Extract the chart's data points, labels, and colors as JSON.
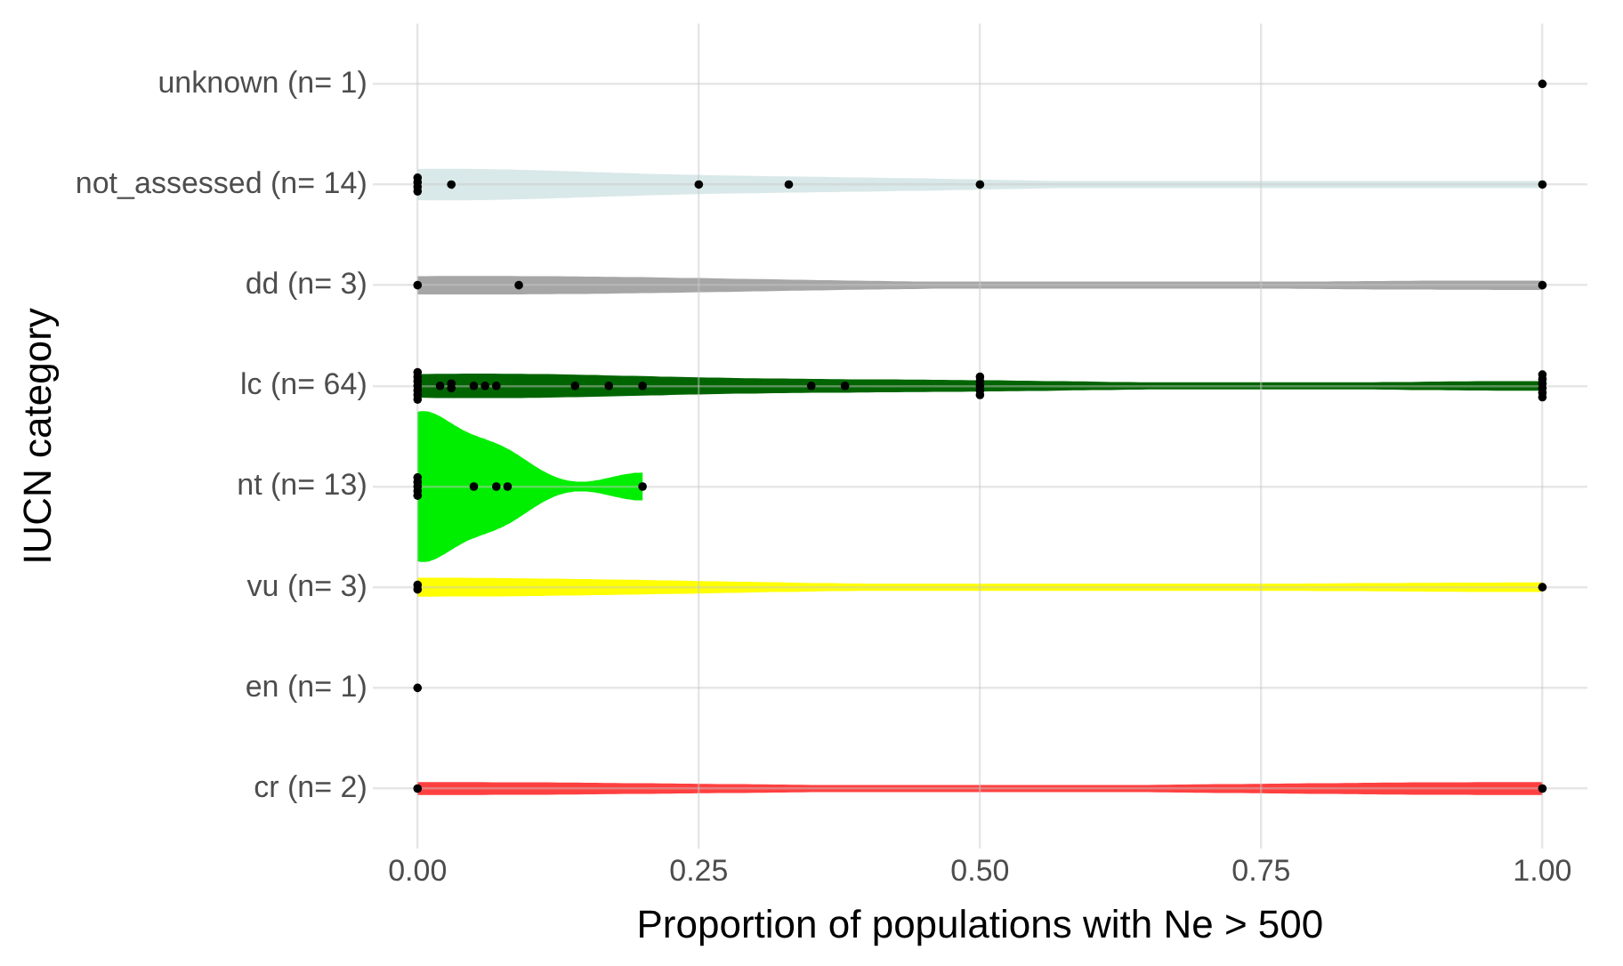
{
  "chart_data": {
    "type": "scatter",
    "orientation": "horizontal",
    "xlabel": "Proportion of populations with Ne > 500",
    "ylabel": "IUCN category",
    "categories": [
      "unknown (n= 1)",
      "not_assessed (n= 14)",
      "dd (n= 3)",
      "lc (n= 64)",
      "nt (n= 13)",
      "vu (n= 3)",
      "en (n= 1)",
      "cr (n= 2)"
    ],
    "colors": [
      null,
      "#d9e8e8",
      "#a6a6a6",
      "#006400",
      "#00ee00",
      "#ffff00",
      null,
      "#ff4040"
    ],
    "xlim": [
      -0.04,
      1.04
    ],
    "xticks": [
      {
        "value": 0,
        "label": "0.00"
      },
      {
        "value": 0.25,
        "label": "0.25"
      },
      {
        "value": 0.5,
        "label": "0.50"
      },
      {
        "value": 0.75,
        "label": "0.75"
      },
      {
        "value": 1,
        "label": "1.00"
      }
    ],
    "grid": true,
    "legend": false,
    "marker": "circle",
    "series": [
      {
        "color": "#000000",
        "x": [
          "unknown (n= 1)",
          "not_assessed (n= 14)",
          "not_assessed (n= 14)",
          "not_assessed (n= 14)",
          "not_assessed (n= 14)",
          "not_assessed (n= 14)",
          "not_assessed (n= 14)",
          "not_assessed (n= 14)",
          "not_assessed (n= 14)",
          "not_assessed (n= 14)",
          "not_assessed (n= 14)",
          "not_assessed (n= 14)",
          "not_assessed (n= 14)",
          "not_assessed (n= 14)",
          "not_assessed (n= 14)",
          "dd (n= 3)",
          "dd (n= 3)",
          "dd (n= 3)",
          "lc (n= 64)",
          "lc (n= 64)",
          "lc (n= 64)",
          "lc (n= 64)",
          "lc (n= 64)",
          "lc (n= 64)",
          "lc (n= 64)",
          "lc (n= 64)",
          "lc (n= 64)",
          "lc (n= 64)",
          "lc (n= 64)",
          "lc (n= 64)",
          "lc (n= 64)",
          "lc (n= 64)",
          "lc (n= 64)",
          "lc (n= 64)",
          "lc (n= 64)",
          "lc (n= 64)",
          "lc (n= 64)",
          "lc (n= 64)",
          "lc (n= 64)",
          "lc (n= 64)",
          "lc (n= 64)",
          "lc (n= 64)",
          "lc (n= 64)",
          "lc (n= 64)",
          "lc (n= 64)",
          "lc (n= 64)",
          "lc (n= 64)",
          "lc (n= 64)",
          "lc (n= 64)",
          "lc (n= 64)",
          "lc (n= 64)",
          "lc (n= 64)",
          "lc (n= 64)",
          "lc (n= 64)",
          "lc (n= 64)",
          "lc (n= 64)",
          "lc (n= 64)",
          "lc (n= 64)",
          "lc (n= 64)",
          "lc (n= 64)",
          "lc (n= 64)",
          "lc (n= 64)",
          "lc (n= 64)",
          "lc (n= 64)",
          "lc (n= 64)",
          "lc (n= 64)",
          "lc (n= 64)",
          "lc (n= 64)",
          "lc (n= 64)",
          "lc (n= 64)",
          "lc (n= 64)",
          "lc (n= 64)",
          "lc (n= 64)",
          "lc (n= 64)",
          "lc (n= 64)",
          "lc (n= 64)",
          "lc (n= 64)",
          "lc (n= 64)",
          "lc (n= 64)",
          "lc (n= 64)",
          "lc (n= 64)",
          "lc (n= 64)",
          "nt (n= 13)",
          "nt (n= 13)",
          "nt (n= 13)",
          "nt (n= 13)",
          "nt (n= 13)",
          "nt (n= 13)",
          "nt (n= 13)",
          "nt (n= 13)",
          "nt (n= 13)",
          "nt (n= 13)",
          "nt (n= 13)",
          "nt (n= 13)",
          "nt (n= 13)",
          "vu (n= 3)",
          "vu (n= 3)",
          "vu (n= 3)",
          "en (n= 1)",
          "cr (n= 2)",
          "cr (n= 2)"
        ],
        "values": [
          1,
          0,
          0,
          0,
          0,
          null,
          null,
          null,
          null,
          null,
          0.03,
          0.25,
          0.33,
          0.5,
          1,
          0,
          0.09,
          1,
          0,
          0,
          0,
          0,
          0,
          0,
          0,
          null,
          null,
          null,
          null,
          null,
          null,
          null,
          null,
          null,
          null,
          null,
          null,
          null,
          null,
          null,
          null,
          null,
          null,
          null,
          null,
          null,
          null,
          null,
          null,
          null,
          0.02,
          0.03,
          0.03,
          0.05,
          0.06,
          0.07,
          0.14,
          0.17,
          0.2,
          0.35,
          0.38,
          0.5,
          0.5,
          0.5,
          0.5,
          0.5,
          null,
          1,
          1,
          1,
          1,
          1,
          1,
          null,
          null,
          null,
          null,
          null,
          null,
          null,
          null,
          null,
          0,
          0,
          0,
          0,
          0,
          null,
          null,
          null,
          null,
          0.05,
          0.07,
          0.08,
          0.2,
          0,
          0,
          1,
          0,
          0,
          1
        ]
      }
    ]
  }
}
